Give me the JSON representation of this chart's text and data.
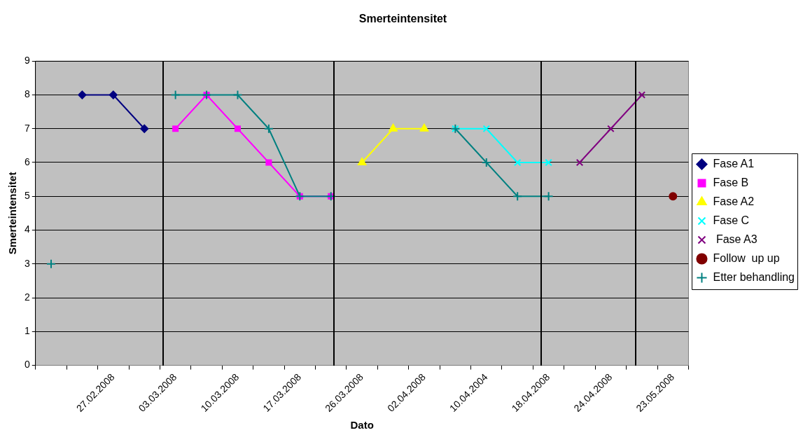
{
  "chart_data": {
    "type": "line",
    "title": "Smerteintensitet",
    "xlabel": "Dato",
    "ylabel": "Smerteintensitet",
    "categories": [
      null,
      null,
      "27.02.2008",
      null,
      "03.03.2008",
      null,
      "10.03.2008",
      null,
      "17.03.2008",
      null,
      "26.03.2008",
      null,
      "02.04.2008",
      null,
      "10.04.2004",
      null,
      "18.04.2008",
      null,
      "24.04.2008",
      null,
      "23.05.2008"
    ],
    "series": [
      {
        "name": "Fase A1",
        "color": "#000080",
        "marker": "diamond",
        "values": [
          null,
          8,
          8,
          7,
          null,
          null,
          null,
          null,
          null,
          null,
          null,
          null,
          null,
          null,
          null,
          null,
          null,
          null,
          null,
          null,
          null
        ]
      },
      {
        "name": "Fase B",
        "color": "#ff00ff",
        "marker": "square",
        "values": [
          null,
          null,
          null,
          null,
          7,
          8,
          7,
          6,
          5,
          5,
          null,
          null,
          null,
          null,
          null,
          null,
          null,
          null,
          null,
          null,
          null
        ]
      },
      {
        "name": "Fase A2",
        "color": "#ffff00",
        "marker": "triangle",
        "values": [
          null,
          null,
          null,
          null,
          null,
          null,
          null,
          null,
          null,
          null,
          6,
          7,
          7,
          null,
          null,
          null,
          null,
          null,
          null,
          null,
          null
        ]
      },
      {
        "name": "Fase C",
        "color": "#00ffff",
        "marker": "cross",
        "values": [
          null,
          null,
          null,
          null,
          null,
          null,
          null,
          null,
          null,
          null,
          null,
          null,
          null,
          7,
          7,
          6,
          6,
          null,
          null,
          null,
          null
        ]
      },
      {
        "name": " Fase A3",
        "color": "#800080",
        "marker": "cross",
        "values": [
          null,
          null,
          null,
          null,
          null,
          null,
          null,
          null,
          null,
          null,
          null,
          null,
          null,
          null,
          null,
          null,
          null,
          6,
          7,
          8,
          null
        ]
      },
      {
        "name": "Follow  up up",
        "color": "#800000",
        "marker": "circle",
        "values": [
          null,
          null,
          null,
          null,
          null,
          null,
          null,
          null,
          null,
          null,
          null,
          null,
          null,
          null,
          null,
          null,
          null,
          null,
          null,
          null,
          5
        ]
      },
      {
        "name": "Etter behandling",
        "color": "#008080",
        "marker": "plus",
        "values": [
          3,
          null,
          null,
          null,
          8,
          8,
          8,
          7,
          5,
          5,
          null,
          null,
          null,
          7,
          6,
          5,
          5,
          null,
          null,
          null,
          null
        ]
      }
    ],
    "ylim": [
      0,
      9
    ],
    "yticks": [
      0,
      1,
      2,
      3,
      4,
      5,
      6,
      7,
      8,
      9
    ],
    "grid": "y",
    "legend": "right"
  }
}
